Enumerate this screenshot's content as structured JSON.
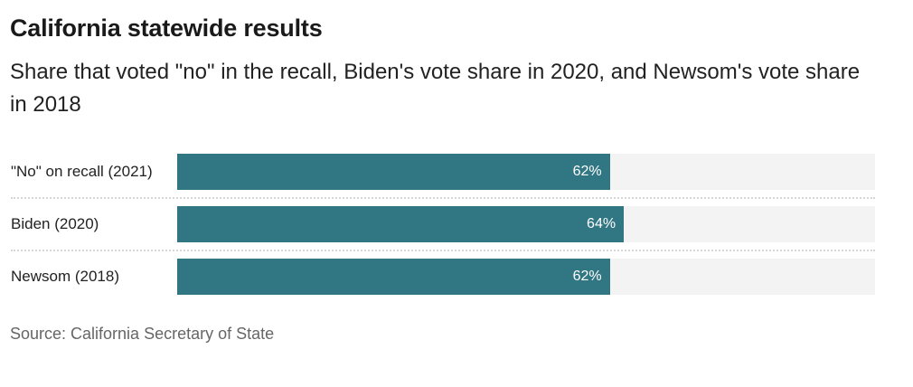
{
  "title": "California statewide results",
  "subtitle": "Share that voted \"no\" in the recall, Biden's vote share in 2020, and Newsom's vote share in 2018",
  "source": "Source: California Secretary of State",
  "colors": {
    "bar": "#307683",
    "track": "#f3f3f3"
  },
  "chart_data": {
    "type": "bar",
    "orientation": "horizontal",
    "title": "California statewide results",
    "subtitle": "Share that voted \"no\" in the recall, Biden's vote share in 2020, and Newsom's vote share in 2018",
    "categories": [
      "\"No\" on recall (2021)",
      "Biden (2020)",
      "Newsom (2018)"
    ],
    "values": [
      62,
      64,
      62
    ],
    "value_labels": [
      "62%",
      "64%",
      "62%"
    ],
    "xlim": [
      0,
      100
    ],
    "unit": "%",
    "grid": false,
    "legend": "none"
  }
}
